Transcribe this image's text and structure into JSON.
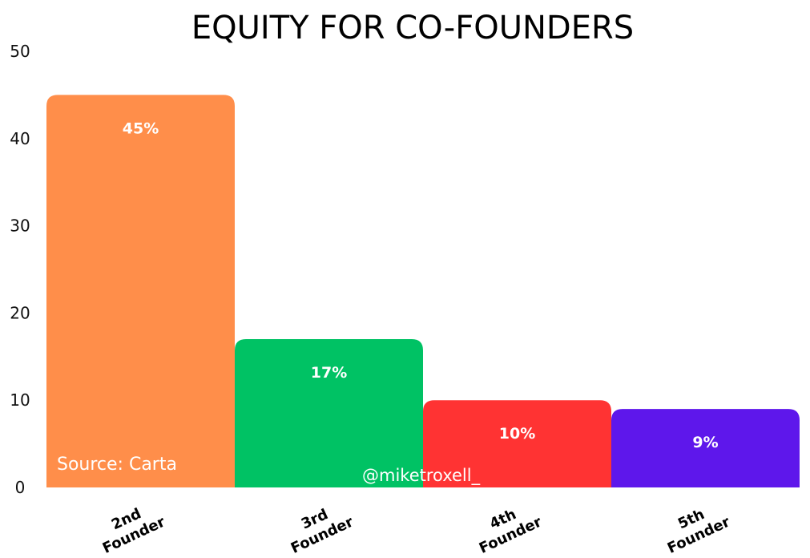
{
  "chart_data": {
    "type": "bar",
    "title": "EQUITY FOR CO-FOUNDERS",
    "xlabel": "",
    "ylabel": "",
    "ylim": [
      0,
      50
    ],
    "yticks": [
      "0",
      "10",
      "20",
      "30",
      "40",
      "50"
    ],
    "grid": false,
    "categories": [
      [
        "2nd",
        "Founder"
      ],
      [
        "3rd",
        "Founder"
      ],
      [
        "4th",
        "Founder"
      ],
      [
        "5th",
        "Founder"
      ]
    ],
    "values": [
      45,
      17,
      10,
      9
    ],
    "value_labels": [
      "45%",
      "17%",
      "10%",
      "9%"
    ],
    "colors": [
      "#FF8E4A",
      "#00C264",
      "#FF3333",
      "#5E17EB"
    ],
    "annotations": {
      "source": "Source: Carta",
      "handle": "@miketroxell_"
    }
  }
}
